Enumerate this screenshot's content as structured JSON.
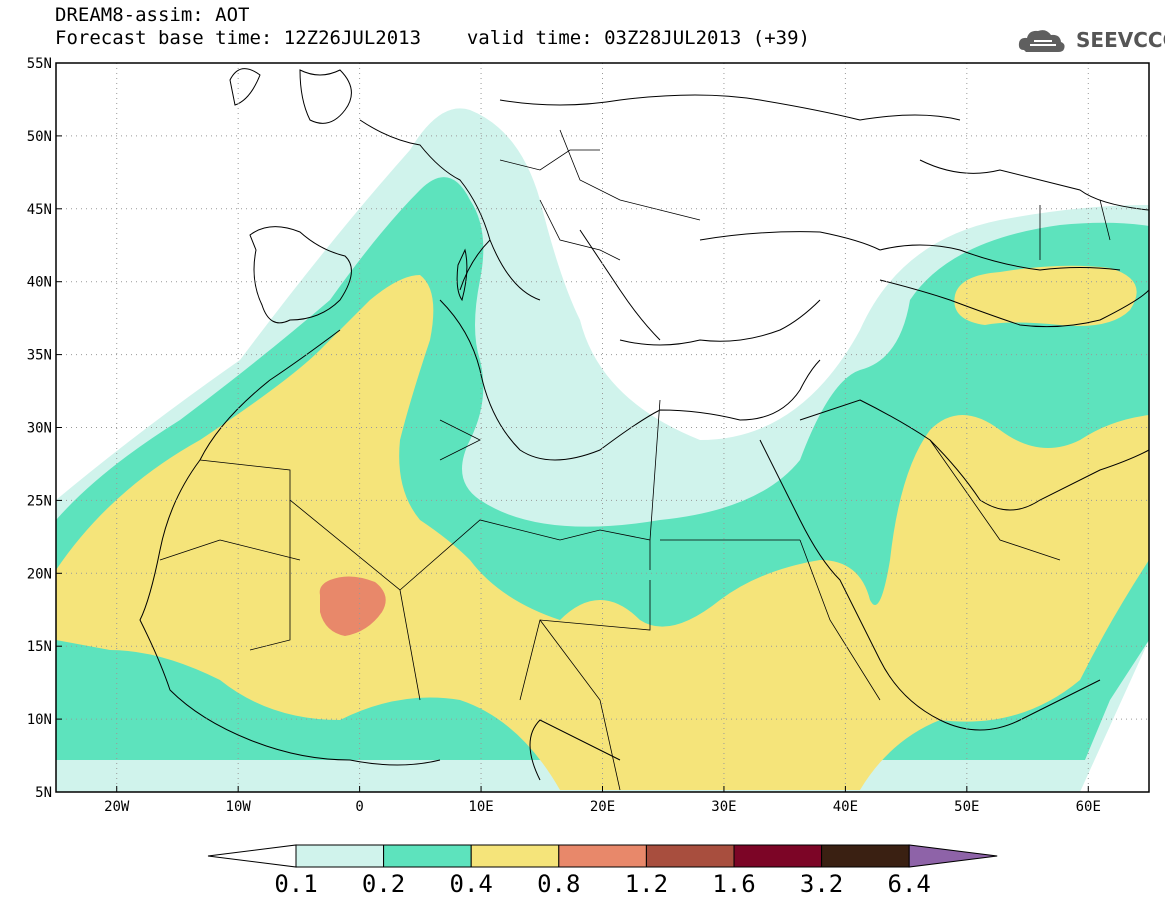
{
  "header": {
    "line1": "DREAM8-assim: AOT",
    "forecast_base_label": "Forecast base time: 12Z26JUL2013",
    "valid_time_label": "valid time: 03Z28JUL2013 (+39)"
  },
  "logo": {
    "icon": "cloud-icon",
    "text": "SEEVCCC"
  },
  "map": {
    "lon_range": [
      -25,
      65
    ],
    "lat_range": [
      5,
      55
    ],
    "lon_ticks": [
      {
        "value": -20,
        "label": "20W"
      },
      {
        "value": -10,
        "label": "10W"
      },
      {
        "value": 0,
        "label": "0"
      },
      {
        "value": 10,
        "label": "10E"
      },
      {
        "value": 20,
        "label": "20E"
      },
      {
        "value": 30,
        "label": "30E"
      },
      {
        "value": 40,
        "label": "40E"
      },
      {
        "value": 50,
        "label": "50E"
      },
      {
        "value": 60,
        "label": "60E"
      }
    ],
    "lat_ticks": [
      {
        "value": 5,
        "label": "5N"
      },
      {
        "value": 10,
        "label": "10N"
      },
      {
        "value": 15,
        "label": "15N"
      },
      {
        "value": 20,
        "label": "20N"
      },
      {
        "value": 25,
        "label": "25N"
      },
      {
        "value": 30,
        "label": "30N"
      },
      {
        "value": 35,
        "label": "35N"
      },
      {
        "value": 40,
        "label": "40N"
      },
      {
        "value": 45,
        "label": "45N"
      },
      {
        "value": 50,
        "label": "50N"
      },
      {
        "value": 55,
        "label": "55N"
      }
    ],
    "grid": "dotted"
  },
  "legend": {
    "bins": [
      {
        "color": "#d0f3ec"
      },
      {
        "color": "#5de3bd"
      },
      {
        "color": "#f5e47a"
      },
      {
        "color": "#e8886a"
      },
      {
        "color": "#a84e3e"
      },
      {
        "color": "#7c0526"
      },
      {
        "color": "#3a2012"
      }
    ],
    "over_color": "#8e63a8",
    "under_color": "#ffffff",
    "labels": [
      "0.1",
      "0.2",
      "0.4",
      "0.8",
      "1.2",
      "1.6",
      "3.2",
      "6.4"
    ]
  },
  "colors": {
    "aot_0_1": "#d0f3ec",
    "aot_0_2": "#5de3bd",
    "aot_0_4": "#f5e47a",
    "aot_0_8": "#e8886a"
  }
}
